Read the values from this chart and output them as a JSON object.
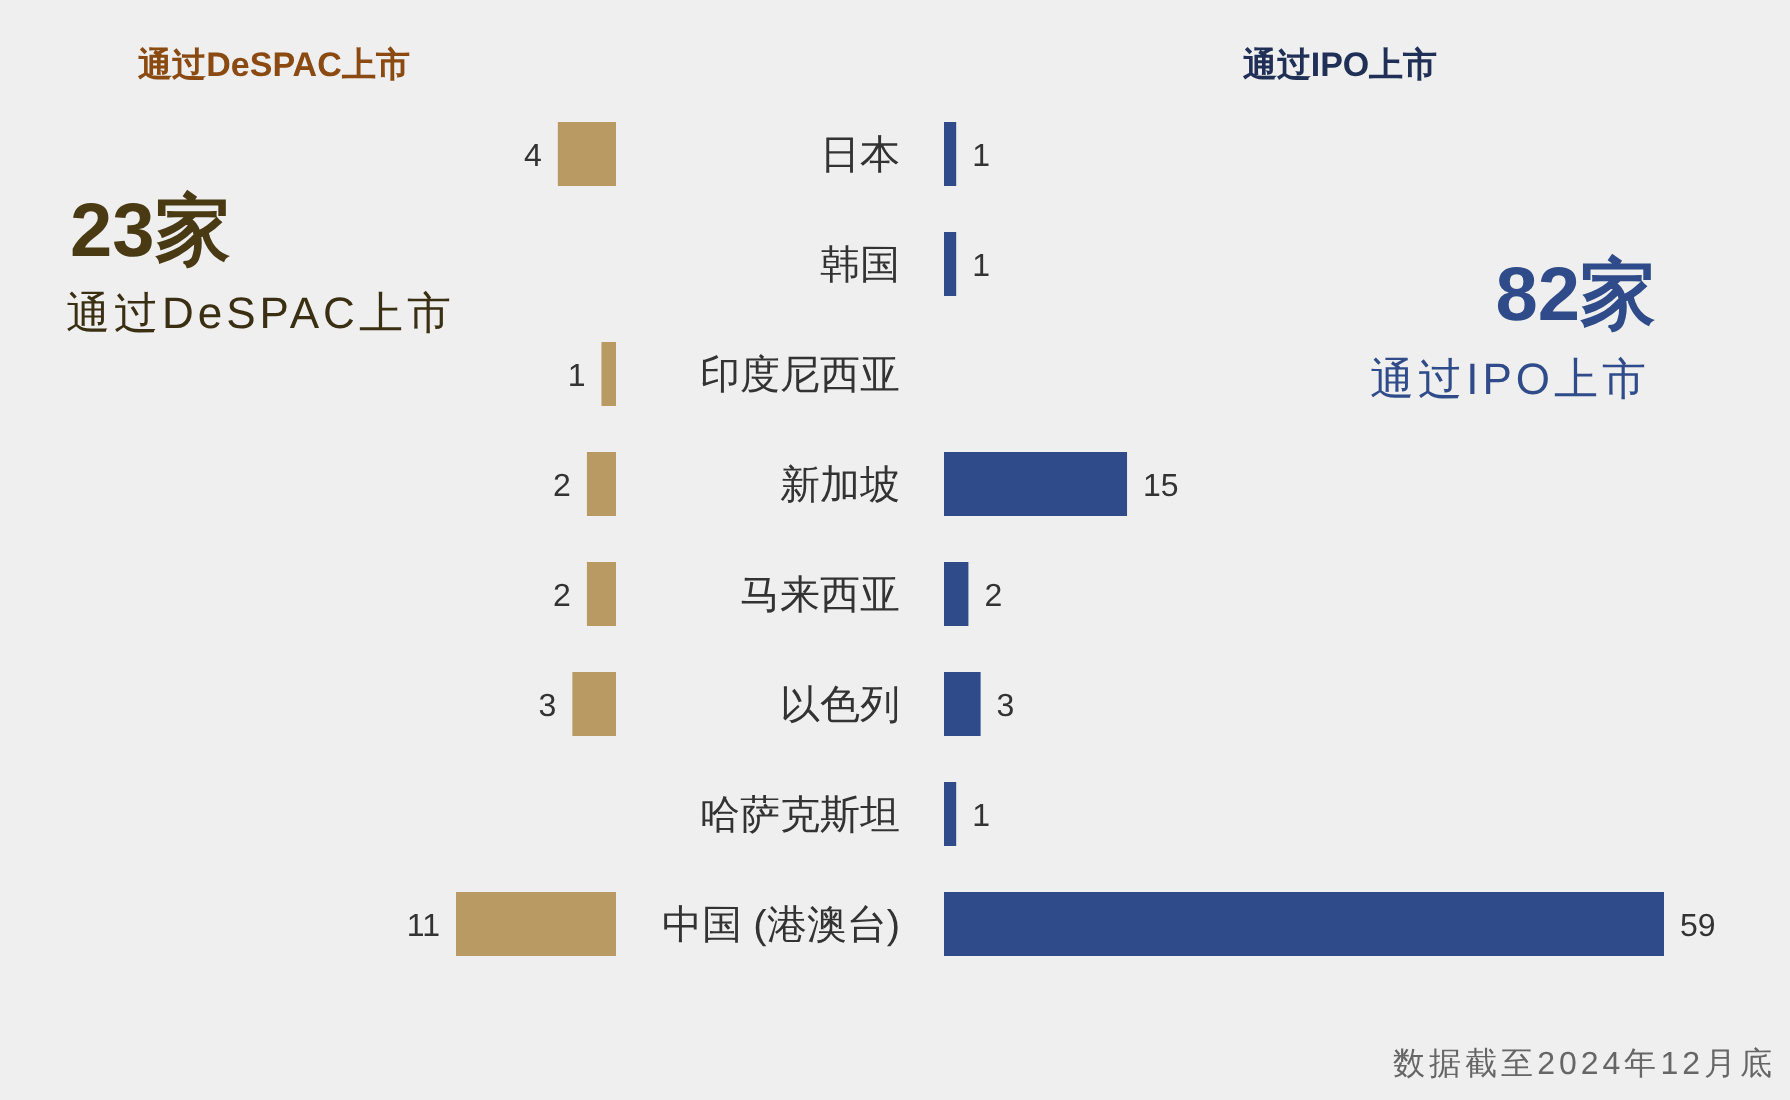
{
  "chart_data": [
    {
      "type": "bar",
      "orientation": "horizontal",
      "title": "通过DeSPAC上市",
      "categories": [
        "日本",
        "韩国",
        "印度尼西亚",
        "新加坡",
        "马来西亚",
        "以色列",
        "哈萨克斯坦",
        "中国 (港澳台)"
      ],
      "values": [
        4,
        null,
        1,
        2,
        2,
        3,
        null,
        11
      ],
      "color": "#b89a62",
      "data_labels": true,
      "tick_labels": "y",
      "annotations": [
        "23家",
        "通过DeSPAC上市"
      ]
    },
    {
      "type": "bar",
      "orientation": "horizontal",
      "title": "通过IPO上市",
      "categories": [
        null,
        null,
        null,
        null,
        null,
        null,
        null,
        null
      ],
      "values": [
        1,
        1,
        null,
        15,
        2,
        3,
        1,
        59
      ],
      "color": "#2f4b89",
      "data_labels": true,
      "annotations": [
        "82家",
        "通过IPO上市",
        "数据截至2024年12月底"
      ]
    }
  ]
}
